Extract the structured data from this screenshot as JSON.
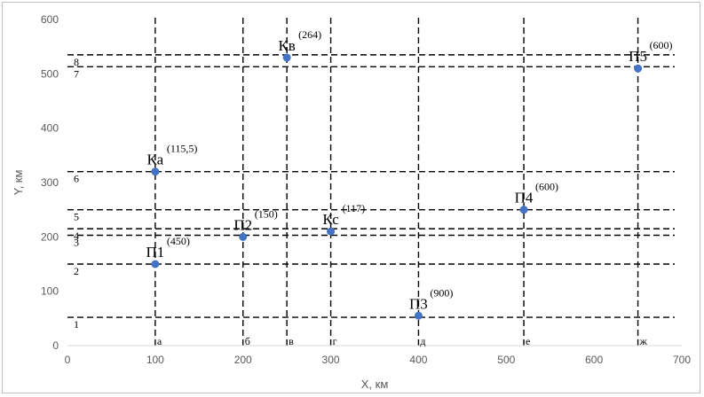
{
  "chart_data": {
    "type": "scatter",
    "xlabel": "X, км",
    "ylabel": "Y, км",
    "xlim": [
      0,
      700
    ],
    "ylim": [
      0,
      600
    ],
    "x_ticks": [
      0,
      100,
      200,
      300,
      400,
      500,
      600,
      700
    ],
    "y_ticks": [
      0,
      100,
      200,
      300,
      400,
      500,
      600
    ],
    "grid": false,
    "marker_color": "#4472c4",
    "points": [
      {
        "label": "П1",
        "value": "(450)",
        "x": 100,
        "y": 150
      },
      {
        "label": "П2",
        "value": "(150)",
        "x": 200,
        "y": 200
      },
      {
        "label": "П3",
        "value": "(900)",
        "x": 400,
        "y": 55
      },
      {
        "label": "П4",
        "value": "(600)",
        "x": 520,
        "y": 250
      },
      {
        "label": "П5",
        "value": "(600)",
        "x": 650,
        "y": 510
      },
      {
        "label": "Ка",
        "value": "(115,5)",
        "x": 100,
        "y": 320
      },
      {
        "label": "Кв",
        "value": "(264)",
        "x": 250,
        "y": 530
      },
      {
        "label": "Кс",
        "value": "(117)",
        "x": 300,
        "y": 210
      }
    ],
    "vertical_lines": [
      {
        "x": 100,
        "label": "а"
      },
      {
        "x": 200,
        "label": "б"
      },
      {
        "x": 250,
        "label": "в"
      },
      {
        "x": 300,
        "label": "г"
      },
      {
        "x": 400,
        "label": "д"
      },
      {
        "x": 520,
        "label": "е"
      },
      {
        "x": 650,
        "label": "ж"
      }
    ],
    "horizontal_lines": [
      {
        "y": 52,
        "label": "1"
      },
      {
        "y": 150,
        "label": "2"
      },
      {
        "y": 203,
        "label": "3"
      },
      {
        "y": 215,
        "label": "4"
      },
      {
        "y": 250,
        "label": "5"
      },
      {
        "y": 320,
        "label": "6"
      },
      {
        "y": 513,
        "label": "7"
      },
      {
        "y": 535,
        "label": "8"
      }
    ]
  }
}
